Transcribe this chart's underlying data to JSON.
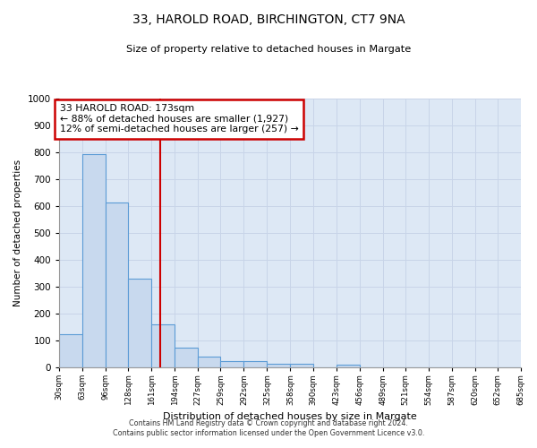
{
  "title1": "33, HAROLD ROAD, BIRCHINGTON, CT7 9NA",
  "title2": "Size of property relative to detached houses in Margate",
  "xlabel": "Distribution of detached houses by size in Margate",
  "ylabel": "Number of detached properties",
  "bin_edges": [
    30,
    63,
    96,
    128,
    161,
    194,
    227,
    259,
    292,
    325,
    358,
    390,
    423,
    456,
    489,
    521,
    554,
    587,
    620,
    652,
    685
  ],
  "bar_heights": [
    125,
    795,
    615,
    330,
    160,
    75,
    40,
    25,
    22,
    15,
    15,
    0,
    10,
    0,
    0,
    0,
    0,
    0,
    0,
    0
  ],
  "bar_color": "#c8d9ee",
  "bar_edge_color": "#5b9bd5",
  "grid_color": "#c8d4e8",
  "vline_x": 173,
  "vline_color": "#cc0000",
  "annotation_text": "33 HAROLD ROAD: 173sqm\n← 88% of detached houses are smaller (1,927)\n12% of semi-detached houses are larger (257) →",
  "annotation_box_color": "#cc0000",
  "ylim": [
    0,
    1000
  ],
  "yticks": [
    0,
    100,
    200,
    300,
    400,
    500,
    600,
    700,
    800,
    900,
    1000
  ],
  "footer1": "Contains HM Land Registry data © Crown copyright and database right 2024.",
  "footer2": "Contains public sector information licensed under the Open Government Licence v3.0.",
  "bg_color": "#dde8f5"
}
